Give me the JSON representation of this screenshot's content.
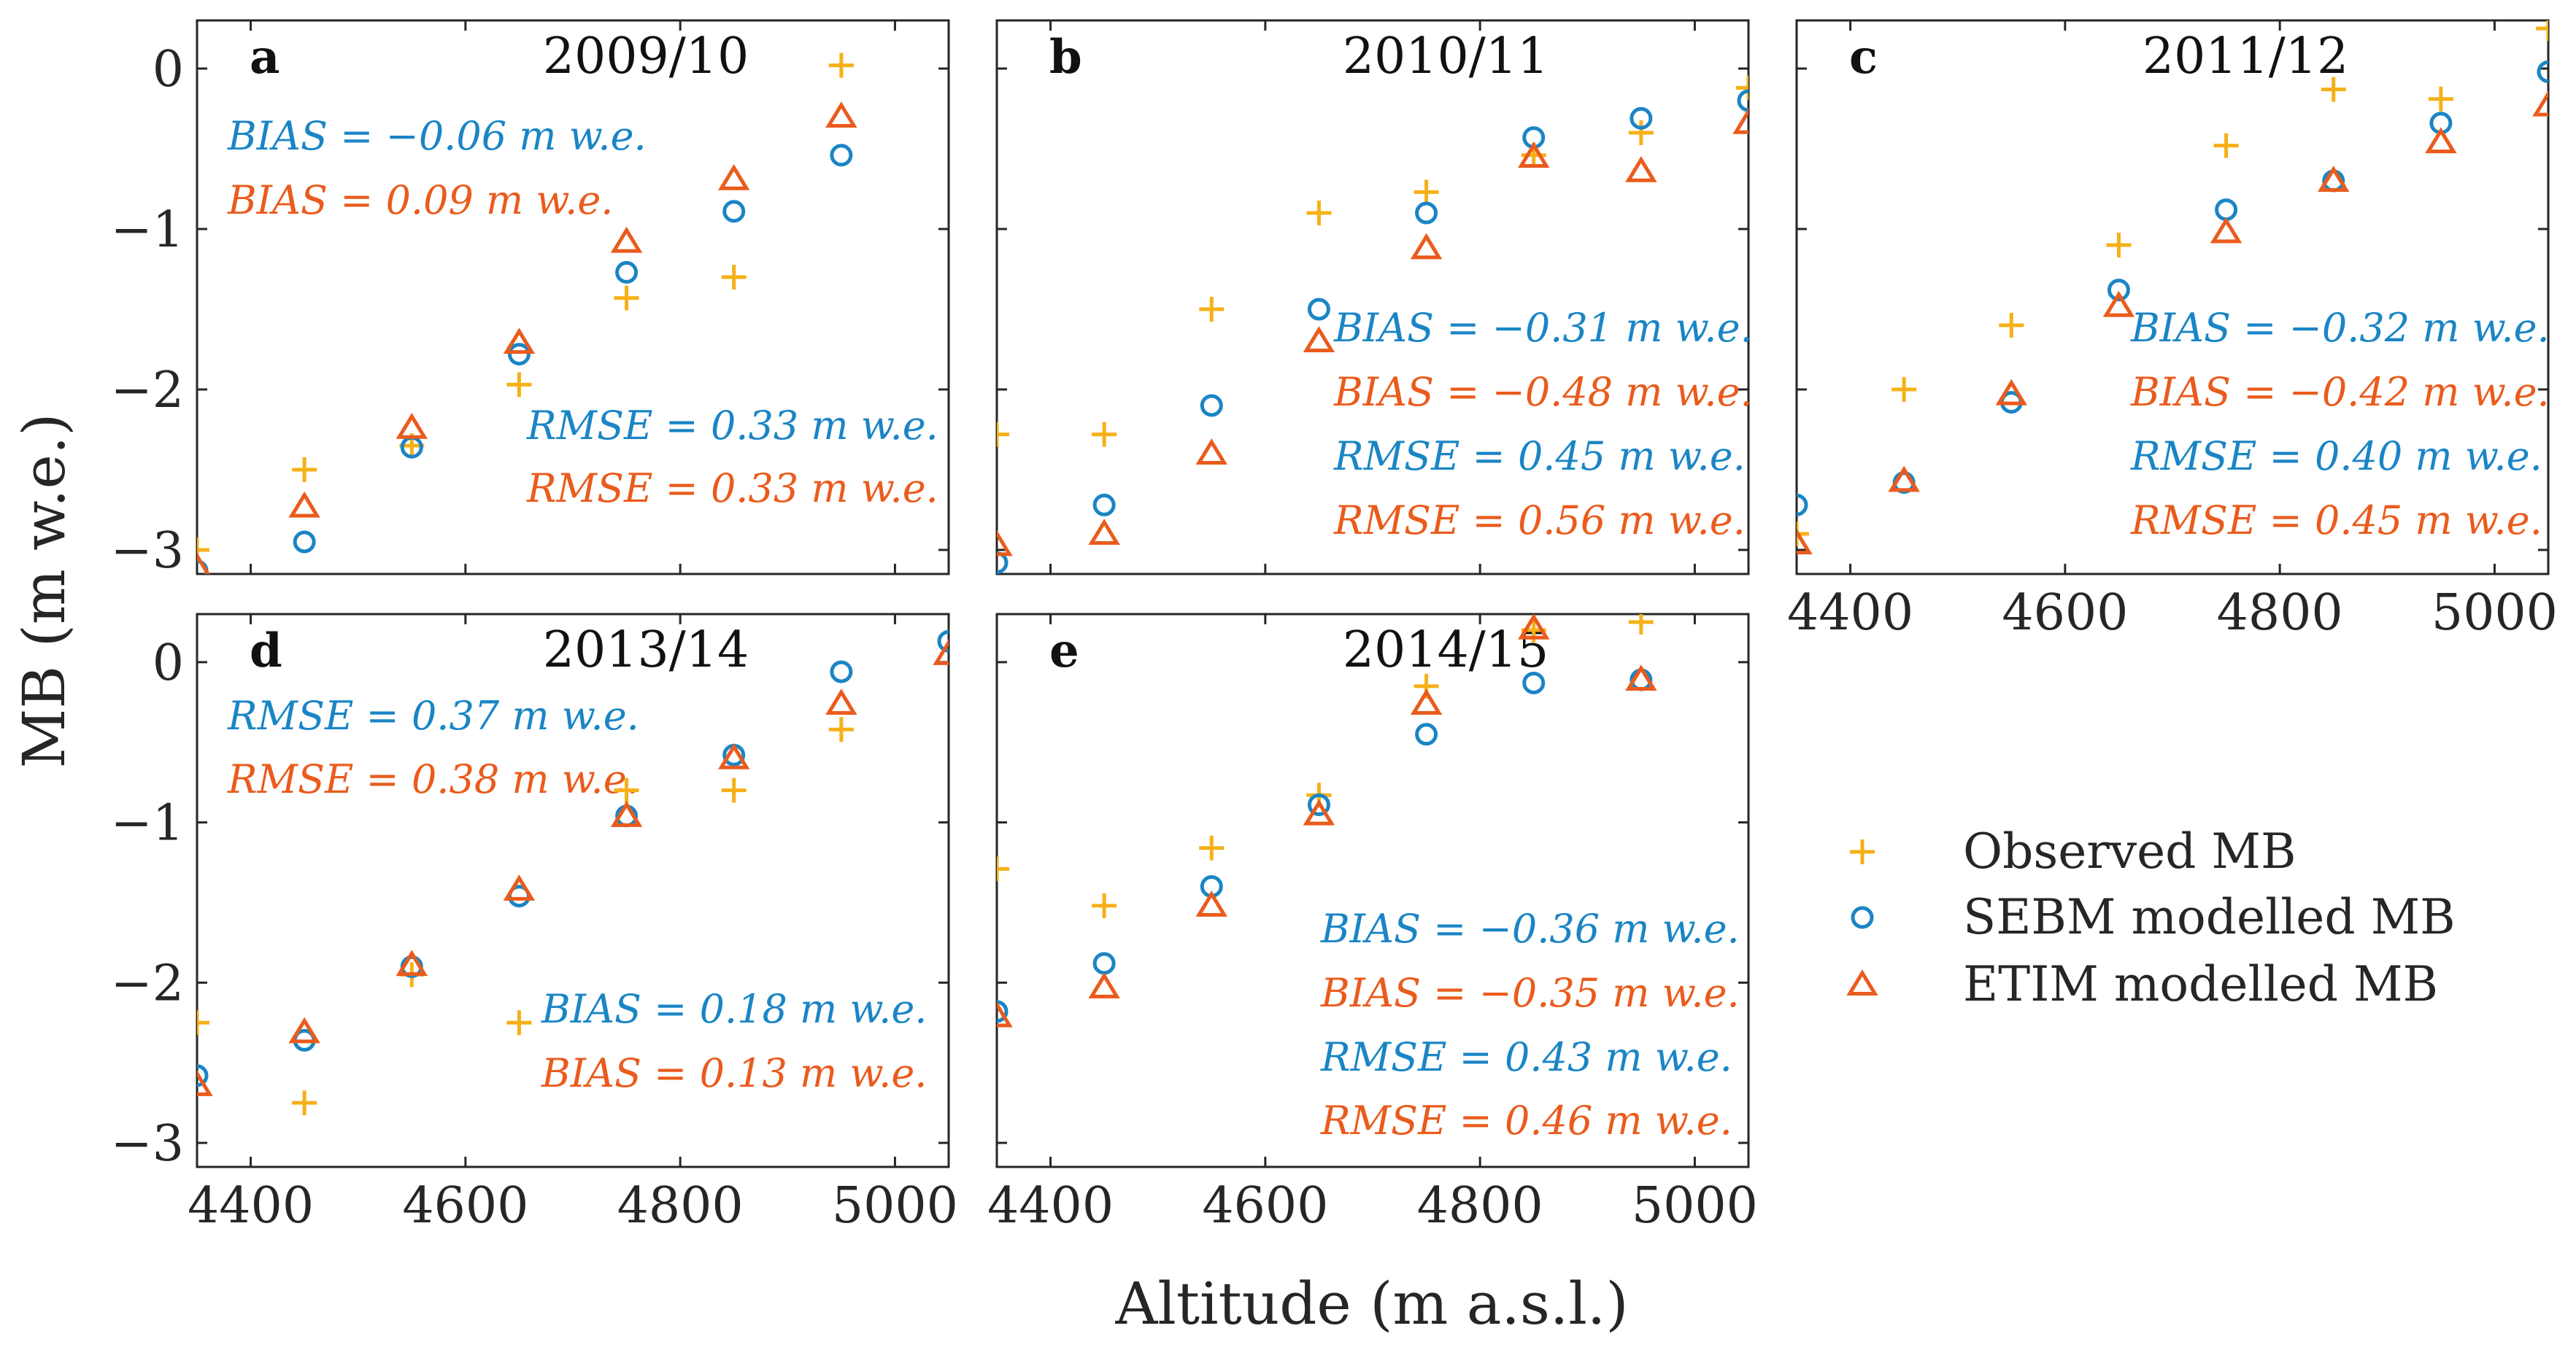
{
  "chart_data": {
    "type": "scatter",
    "xlabel": "Altitude (m a.s.l.)",
    "ylabel": "MB (m w.e.)",
    "xlim": [
      4350,
      5050
    ],
    "ylim": [
      -3.15,
      0.3
    ],
    "xticks": [
      4400,
      4600,
      4800,
      5000
    ],
    "yticks": [
      0,
      -1,
      -2,
      -3
    ],
    "x": [
      4350,
      4450,
      4550,
      4650,
      4750,
      4850,
      4950,
      5050
    ],
    "legend": {
      "position": "lower-right",
      "entries": [
        {
          "name": "Observed MB",
          "marker": "plus",
          "color": "#f6b017"
        },
        {
          "name": "SEBM modelled MB",
          "marker": "circle",
          "color": "#1a85c5"
        },
        {
          "name": "ETIM modelled MB",
          "marker": "triangle",
          "color": "#ea5b1c"
        }
      ]
    },
    "colors": {
      "observed": "#f6b017",
      "sebm": "#1a85c5",
      "etim": "#ea5b1c",
      "axis": "#262626"
    },
    "panels": [
      {
        "letter": "a",
        "title": "2009/10",
        "observed": [
          -3.0,
          -2.5,
          -2.35,
          -1.97,
          -1.43,
          -1.3,
          0.02,
          null
        ],
        "sebm": [
          -3.13,
          -2.95,
          -2.36,
          -1.78,
          -1.27,
          -0.89,
          -0.54,
          null
        ],
        "etim": [
          -3.11,
          -2.73,
          -2.24,
          -1.71,
          -1.08,
          -0.69,
          -0.3,
          null
        ],
        "stats": [
          {
            "text": "BIAS = −0.06 m w.e.",
            "series": "sebm"
          },
          {
            "text": "BIAS = 0.09 m w.e.",
            "series": "etim"
          },
          {
            "text": "RMSE = 0.33 m w.e.",
            "series": "sebm"
          },
          {
            "text": "RMSE = 0.33 m w.e.",
            "series": "etim"
          }
        ]
      },
      {
        "letter": "b",
        "title": "2010/11",
        "observed": [
          -2.28,
          -2.28,
          -1.5,
          -0.9,
          -0.77,
          -0.54,
          -0.4,
          -0.12
        ],
        "sebm": [
          -3.08,
          -2.72,
          -2.1,
          -1.5,
          -0.9,
          -0.43,
          -0.31,
          -0.2
        ],
        "etim": [
          -2.97,
          -2.9,
          -2.4,
          -1.7,
          -1.12,
          -0.55,
          -0.64,
          -0.34
        ],
        "stats": [
          {
            "text": "BIAS = −0.31 m w.e.",
            "series": "sebm"
          },
          {
            "text": "BIAS = −0.48 m w.e.",
            "series": "etim"
          },
          {
            "text": "RMSE = 0.45 m w.e.",
            "series": "sebm"
          },
          {
            "text": "RMSE = 0.56 m w.e.",
            "series": "etim"
          }
        ]
      },
      {
        "letter": "c",
        "title": "2011/12",
        "observed": [
          -2.9,
          -2.0,
          -1.6,
          -1.1,
          -0.48,
          -0.13,
          -0.19,
          0.25
        ],
        "sebm": [
          -2.72,
          -2.58,
          -2.08,
          -1.38,
          -0.88,
          -0.7,
          -0.34,
          -0.02
        ],
        "etim": [
          -2.96,
          -2.57,
          -2.03,
          -1.48,
          -1.02,
          -0.7,
          -0.46,
          -0.23
        ],
        "stats": [
          {
            "text": "BIAS = −0.32 m w.e.",
            "series": "sebm"
          },
          {
            "text": "BIAS = −0.42 m w.e.",
            "series": "etim"
          },
          {
            "text": "RMSE = 0.40 m w.e.",
            "series": "sebm"
          },
          {
            "text": "RMSE = 0.45 m w.e.",
            "series": "etim"
          }
        ]
      },
      {
        "letter": "d",
        "title": "2013/14",
        "observed": [
          -2.25,
          -2.75,
          -1.95,
          -2.25,
          -0.8,
          -0.8,
          -0.42,
          null
        ],
        "sebm": [
          -2.58,
          -2.36,
          -1.9,
          -1.46,
          -0.96,
          -0.58,
          -0.06,
          0.13
        ],
        "etim": [
          -2.64,
          -2.31,
          -1.89,
          -1.42,
          -0.96,
          -0.6,
          -0.26,
          0.05
        ],
        "stats": [
          {
            "text": "RMSE = 0.37 m w.e.",
            "series": "sebm"
          },
          {
            "text": "RMSE = 0.38 m w.e.",
            "series": "etim"
          },
          {
            "text": "BIAS = 0.18 m w.e.",
            "series": "sebm"
          },
          {
            "text": "BIAS = 0.13 m w.e.",
            "series": "etim"
          }
        ]
      },
      {
        "letter": "e",
        "title": "2014/15",
        "observed": [
          -1.29,
          -1.52,
          -1.16,
          -0.83,
          -0.15,
          0.2,
          0.25,
          null
        ],
        "sebm": [
          -2.18,
          -1.88,
          -1.4,
          -0.89,
          -0.45,
          -0.13,
          -0.11,
          null
        ],
        "etim": [
          -2.21,
          -2.03,
          -1.52,
          -0.95,
          -0.26,
          0.21,
          -0.11,
          null
        ],
        "stats": [
          {
            "text": "BIAS = −0.36 m w.e.",
            "series": "sebm"
          },
          {
            "text": "BIAS = −0.35 m w.e.",
            "series": "etim"
          },
          {
            "text": "RMSE = 0.43 m w.e.",
            "series": "sebm"
          },
          {
            "text": "RMSE = 0.46 m w.e.",
            "series": "etim"
          }
        ]
      }
    ]
  }
}
